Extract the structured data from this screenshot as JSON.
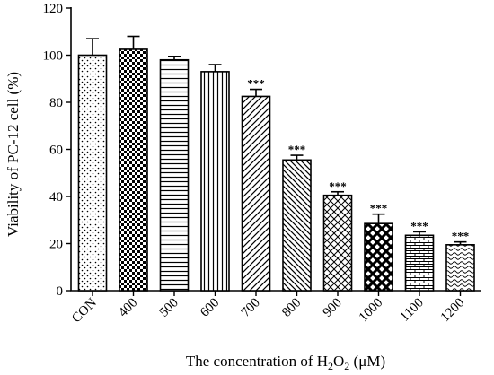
{
  "chart_data": {
    "type": "bar",
    "categories": [
      "CON",
      "400",
      "500",
      "600",
      "700",
      "800",
      "900",
      "1000",
      "1100",
      "1200"
    ],
    "values": [
      100,
      102.5,
      98,
      93,
      82.5,
      55.5,
      40.5,
      28.5,
      23.5,
      19.5
    ],
    "errors": [
      7,
      5.5,
      1.5,
      3,
      3,
      2,
      1.5,
      4,
      1.5,
      1.2
    ],
    "significance": [
      "",
      "",
      "",
      "",
      "***",
      "***",
      "***",
      "***",
      "***",
      "***"
    ],
    "patterns": [
      "dots",
      "checker",
      "hlines",
      "vlines",
      "diag-right",
      "diag-left",
      "diag-cross",
      "diamond-cross",
      "brick",
      "wave"
    ],
    "ylabel": "Viability of PC-12 cell (%)",
    "xlabel_parts": {
      "prefix": "The concentration of H",
      "sub1": "2",
      "mid": "O",
      "sub2": "2",
      "suffix": " (μM)"
    },
    "ylim": [
      0,
      120
    ],
    "yticks": [
      0,
      20,
      40,
      60,
      80,
      100,
      120
    ],
    "grid": false,
    "bar_color": "#000000",
    "background": "#ffffff"
  }
}
